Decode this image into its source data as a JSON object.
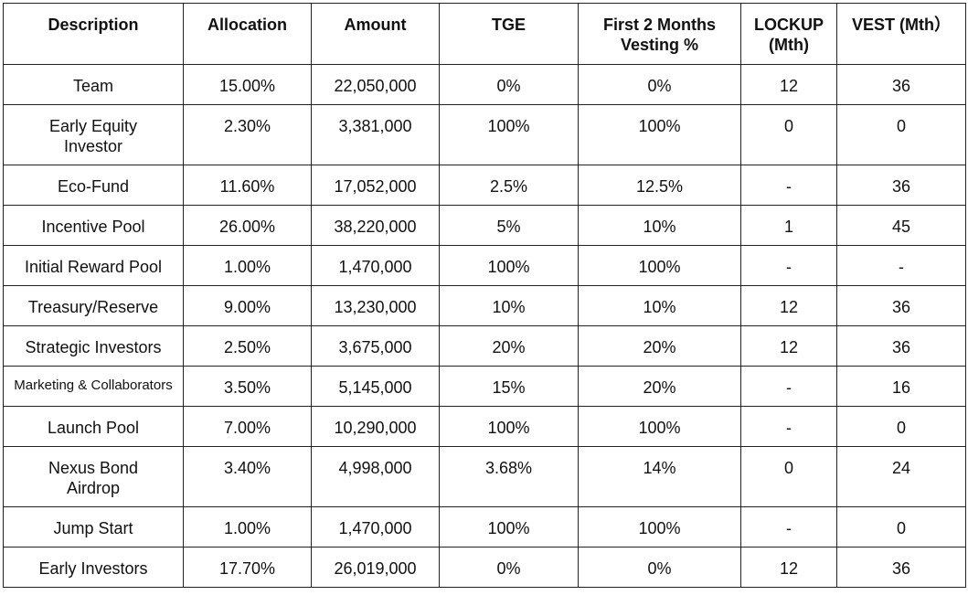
{
  "table": {
    "header": [
      "Description",
      "Allocation",
      "Amount",
      "TGE",
      "First 2 Months Vesting %",
      "LOCKUP (Mth)",
      "VEST (Mth）"
    ],
    "rows": [
      [
        "Team",
        "15.00%",
        "22,050,000",
        "0%",
        "0%",
        "12",
        "36"
      ],
      [
        "Early Equity Investor",
        "2.30%",
        "3,381,000",
        "100%",
        "100%",
        "0",
        "0"
      ],
      [
        "Eco-Fund",
        "11.60%",
        "17,052,000",
        "2.5%",
        "12.5%",
        "-",
        "36"
      ],
      [
        "Incentive Pool",
        "26.00%",
        "38,220,000",
        "5%",
        "10%",
        "1",
        "45"
      ],
      [
        "Initial Reward Pool",
        "1.00%",
        "1,470,000",
        "100%",
        "100%",
        "-",
        "-"
      ],
      [
        "Treasury/Reserve",
        "9.00%",
        "13,230,000",
        "10%",
        "10%",
        "12",
        "36"
      ],
      [
        "Strategic Investors",
        "2.50%",
        "3,675,000",
        "20%",
        "20%",
        "12",
        "36"
      ],
      [
        "Marketing & Collaborators",
        "3.50%",
        "5,145,000",
        "15%",
        "20%",
        "-",
        "16"
      ],
      [
        "Launch Pool",
        "7.00%",
        "10,290,000",
        "100%",
        "100%",
        "-",
        "0"
      ],
      [
        "Nexus Bond Airdrop",
        "3.40%",
        "4,998,000",
        "3.68%",
        "14%",
        "0",
        "24"
      ],
      [
        "Jump Start",
        "1.00%",
        "1,470,000",
        "100%",
        "100%",
        "-",
        "0"
      ],
      [
        "Early Investors",
        "17.70%",
        "26,019,000",
        "0%",
        "0%",
        "12",
        "36"
      ]
    ]
  }
}
